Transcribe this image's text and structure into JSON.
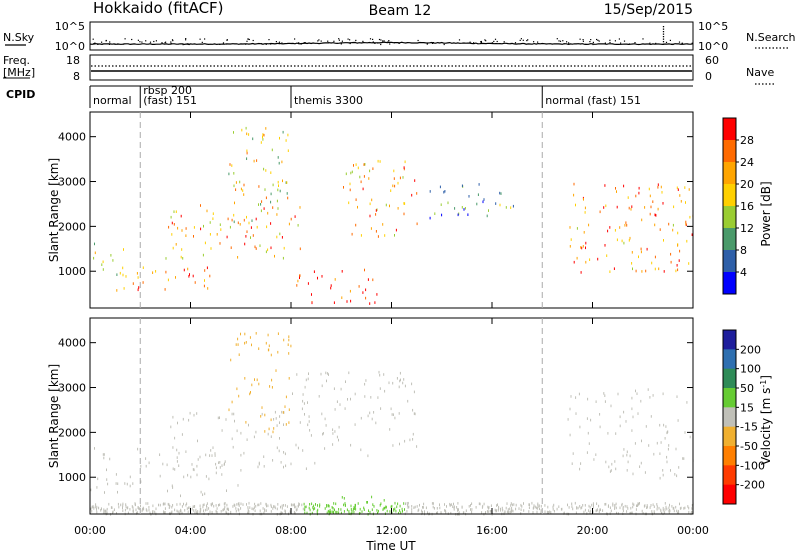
{
  "header": {
    "station": "Hokkaido (fitACF)",
    "beam": "Beam 12",
    "date": "15/Sep/2015"
  },
  "top_panels": {
    "nsky_label": "N.Sky",
    "nsearch_label": "N.Search",
    "nsky_ticks": [
      "10^5",
      "10^0"
    ],
    "nsearch_ticks": [
      "10^5",
      "10^0"
    ],
    "freq_label": "Freq.",
    "freq_unit": "[MHz]",
    "freq_ticks": [
      "18",
      "8"
    ],
    "nave_label": "Nave",
    "nave_ticks": [
      "60",
      "0"
    ],
    "cpid_label": "CPID",
    "cpid_segments": [
      {
        "label": "normal",
        "start": 0.0
      },
      {
        "label": "rbsp 200",
        "label2": "(fast) 151",
        "start": 2.0
      },
      {
        "label": "themis 3300",
        "start": 8.0
      },
      {
        "label": "normal (fast) 151",
        "start": 18.0
      }
    ]
  },
  "colorbars": {
    "power": {
      "label": "Power [dB]",
      "ticks": [
        "28",
        "24",
        "20",
        "16",
        "12",
        "8",
        "4"
      ],
      "colors": [
        "#ff0000",
        "#ff6a00",
        "#ffa500",
        "#ffd000",
        "#9acd32",
        "#4a9a6a",
        "#2e5fa8",
        "#0000ff"
      ]
    },
    "velocity": {
      "label": "Velocity [m s",
      "label_sup": "-1",
      "label_end": "]",
      "ticks": [
        "200",
        "100",
        "50",
        "15",
        "-15",
        "-50",
        "-100",
        "-200"
      ],
      "colors": [
        "#1e1e9c",
        "#2e6fb0",
        "#2e8b57",
        "#66cc33",
        "#c0c0b8",
        "#f0b030",
        "#ff7f00",
        "#ff3b00",
        "#ff0000"
      ]
    }
  },
  "axes": {
    "ylabel": "Slant Range [km]",
    "xlabel": "Time UT",
    "xticks": [
      "00:00",
      "04:00",
      "08:00",
      "12:00",
      "16:00",
      "20:00",
      "00:00"
    ],
    "yticks": [
      "1000",
      "2000",
      "3000",
      "4000"
    ]
  },
  "chart_data": [
    {
      "type": "heatmap",
      "name": "power",
      "x_range_hours": [
        0,
        24
      ],
      "y_range_km": [
        180,
        4550
      ],
      "value_range_db": [
        0,
        32
      ],
      "features": [
        {
          "t": [
            0.0,
            1.4
          ],
          "r": [
            900,
            1700
          ],
          "value": 14
        },
        {
          "t": [
            1.0,
            5.0
          ],
          "r": [
            600,
            1200
          ],
          "value": 24
        },
        {
          "t": [
            3.0,
            8.5
          ],
          "r": [
            1300,
            2500
          ],
          "value": 22
        },
        {
          "t": [
            5.5,
            8.0
          ],
          "r": [
            2000,
            4300
          ],
          "value": 18
        },
        {
          "t": [
            8.2,
            11.5
          ],
          "r": [
            300,
            1100
          ],
          "value": 30
        },
        {
          "t": [
            10.0,
            13.0
          ],
          "r": [
            1800,
            3500
          ],
          "value": 22
        },
        {
          "t": [
            13.5,
            17.0
          ],
          "r": [
            2200,
            3000
          ],
          "value": 8
        },
        {
          "t": [
            19.0,
            24.0
          ],
          "r": [
            1000,
            3000
          ],
          "value": 24
        }
      ]
    },
    {
      "type": "heatmap",
      "name": "velocity",
      "x_range_hours": [
        0,
        24
      ],
      "y_range_km": [
        180,
        4550
      ],
      "value_range_ms": [
        -250,
        250
      ],
      "features": [
        {
          "t": [
            0.0,
            6.0
          ],
          "r": [
            600,
            1700
          ],
          "value": 0
        },
        {
          "t": [
            3.0,
            9.0
          ],
          "r": [
            1200,
            2500
          ],
          "value": 0
        },
        {
          "t": [
            8.0,
            13.0
          ],
          "r": [
            1500,
            3400
          ],
          "value": 0
        },
        {
          "t": [
            5.5,
            8.0
          ],
          "r": [
            2000,
            4300
          ],
          "value": -40
        },
        {
          "t": [
            8.5,
            12.5
          ],
          "r": [
            200,
            600
          ],
          "value": 40
        },
        {
          "t": [
            19.0,
            24.0
          ],
          "r": [
            1000,
            3000
          ],
          "value": 0
        }
      ]
    }
  ]
}
